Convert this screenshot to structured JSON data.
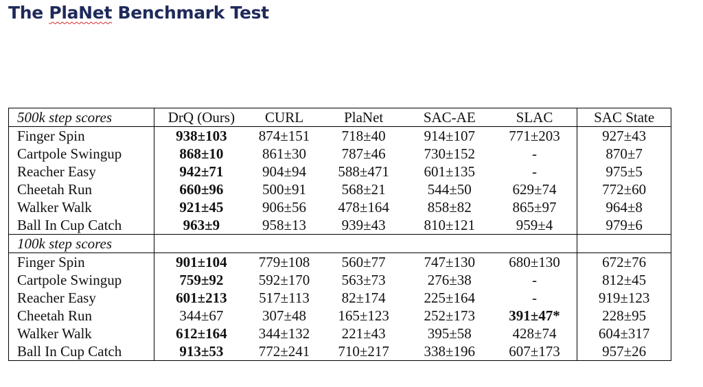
{
  "title": {
    "prefix": "The ",
    "squiggle_word": "PlaNet",
    "suffix": " Benchmark Test"
  },
  "table": {
    "columns": [
      "DrQ (Ours)",
      "CURL",
      "PlaNet",
      "SAC-AE",
      "SLAC",
      "SAC State"
    ],
    "sections": [
      {
        "label": "500k step scores",
        "rows": [
          {
            "name": "Finger Spin",
            "values": [
              "938±103",
              "874±151",
              "718±40",
              "914±107",
              "771±203",
              "927±43"
            ],
            "bold": [
              0
            ]
          },
          {
            "name": "Cartpole Swingup",
            "values": [
              "868±10",
              "861±30",
              "787±46",
              "730±152",
              "-",
              "870±7"
            ],
            "bold": [
              0
            ]
          },
          {
            "name": "Reacher Easy",
            "values": [
              "942±71",
              "904±94",
              "588±471",
              "601±135",
              "-",
              "975±5"
            ],
            "bold": [
              0
            ]
          },
          {
            "name": "Cheetah Run",
            "values": [
              "660±96",
              "500±91",
              "568±21",
              "544±50",
              "629±74",
              "772±60"
            ],
            "bold": [
              0
            ]
          },
          {
            "name": "Walker Walk",
            "values": [
              "921±45",
              "906±56",
              "478±164",
              "858±82",
              "865±97",
              "964±8"
            ],
            "bold": [
              0
            ]
          },
          {
            "name": "Ball In Cup Catch",
            "values": [
              "963±9",
              "958±13",
              "939±43",
              "810±121",
              "959±4",
              "979±6"
            ],
            "bold": [
              0
            ]
          }
        ]
      },
      {
        "label": "100k step scores",
        "rows": [
          {
            "name": "Finger Spin",
            "values": [
              "901±104",
              "779±108",
              "560±77",
              "747±130",
              "680±130",
              "672±76"
            ],
            "bold": [
              0
            ]
          },
          {
            "name": "Cartpole Swingup",
            "values": [
              "759±92",
              "592±170",
              "563±73",
              "276±38",
              "-",
              "812±45"
            ],
            "bold": [
              0
            ]
          },
          {
            "name": "Reacher Easy",
            "values": [
              "601±213",
              "517±113",
              "82±174",
              "225±164",
              "-",
              "919±123"
            ],
            "bold": [
              0
            ]
          },
          {
            "name": "Cheetah Run",
            "values": [
              "344±67",
              "307±48",
              "165±123",
              "252±173",
              "391±47*",
              "228±95"
            ],
            "bold": [
              4
            ]
          },
          {
            "name": "Walker Walk",
            "values": [
              "612±164",
              "344±132",
              "221±43",
              "395±58",
              "428±74",
              "604±317"
            ],
            "bold": [
              0
            ]
          },
          {
            "name": "Ball In Cup Catch",
            "values": [
              "913±53",
              "772±241",
              "710±217",
              "338±196",
              "607±173",
              "957±26"
            ],
            "bold": [
              0
            ]
          }
        ]
      }
    ]
  }
}
